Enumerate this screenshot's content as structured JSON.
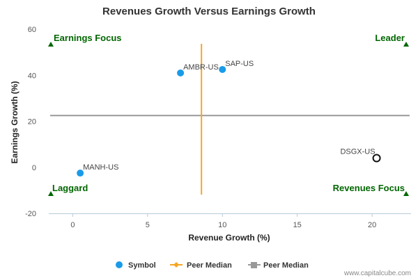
{
  "chart_data": {
    "type": "scatter",
    "title": "Revenues Growth Versus Earnings Growth",
    "xlabel": "Revenue Growth (%)",
    "ylabel": "Earnings Growth (%)",
    "xlim": [
      -1.6,
      22.6
    ],
    "ylim": [
      -20,
      60
    ],
    "xticks": [
      0,
      5,
      10,
      15,
      20
    ],
    "yticks": [
      -20,
      0,
      20,
      40,
      60
    ],
    "grid": false,
    "legend_position": "bottom",
    "points": [
      {
        "symbol": "AMBR-US",
        "x": 7.2,
        "y": 41,
        "style": "filled"
      },
      {
        "symbol": "SAP-US",
        "x": 10.0,
        "y": 42.5,
        "style": "filled"
      },
      {
        "symbol": "MANH-US",
        "x": 0.5,
        "y": -2.5,
        "style": "filled"
      },
      {
        "symbol": "DSGX-US",
        "x": 20.3,
        "y": 4,
        "style": "hollow"
      }
    ],
    "peer_median_revenue": 8.6,
    "peer_median_earnings": 22.5,
    "quadrants": {
      "top_left": "Earnings Focus",
      "top_right": "Leader",
      "bottom_left": "Laggard",
      "bottom_right": "Revenues Focus"
    },
    "legend": [
      "Symbol",
      "Peer Median",
      "Peer Median"
    ],
    "colors": {
      "point": "#1a9be8",
      "hollow_stroke": "#111111",
      "revenue_median": "#f5a623",
      "earnings_median": "#999999",
      "quadrant": "#006600"
    }
  },
  "credit": "www.capitalcube.com"
}
